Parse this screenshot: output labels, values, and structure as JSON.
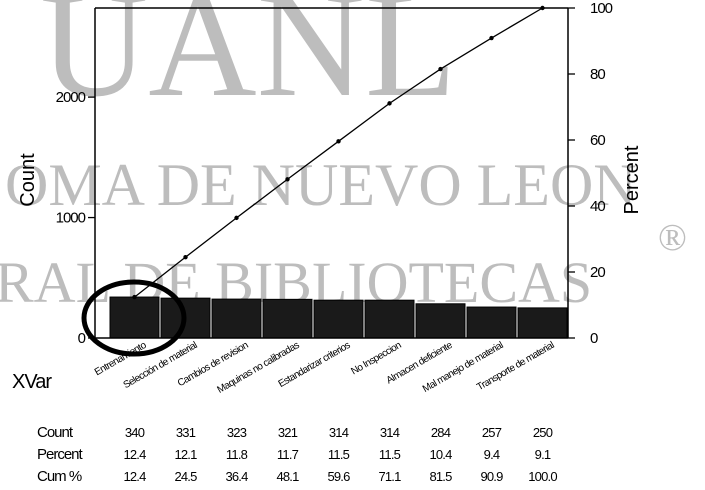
{
  "watermark": {
    "line1": "OMA DE NUEVO LEON",
    "line2": "RAL DE BIBLIOTECAS",
    "top": "UANL",
    "mark": "®"
  },
  "chart_data": {
    "type": "bar",
    "title": "",
    "xlabel": "XVar",
    "ylabel": "Count",
    "y2label": "Percent",
    "ylim": [
      0,
      2740
    ],
    "y2lim": [
      0,
      100
    ],
    "yticks": [
      0,
      1000,
      2000
    ],
    "ytick_labels": [
      "0",
      "1000",
      "2000"
    ],
    "y2ticks": [
      0,
      20,
      40,
      60,
      80,
      100
    ],
    "y2tick_labels": [
      "0",
      "20",
      "40",
      "60",
      "80",
      "100"
    ],
    "grid": false,
    "categories": [
      "Entrenamiento",
      "Selección de material",
      "Cambios de revision",
      "Maquinas no calibradas",
      "Estandarizar criterios",
      "No Inspeccion",
      "Almacen deficiente",
      "Mal manejo de material",
      "Transporte de material"
    ],
    "series": [
      {
        "name": "Count",
        "type": "bar",
        "values": [
          340,
          331,
          323,
          321,
          314,
          314,
          284,
          257,
          250
        ]
      },
      {
        "name": "Cum %",
        "type": "line",
        "values": [
          12.4,
          24.5,
          36.4,
          48.1,
          59.6,
          71.1,
          81.5,
          90.9,
          100.0
        ]
      }
    ],
    "table": {
      "rows": [
        {
          "label": "Count",
          "values": [
            "340",
            "331",
            "323",
            "321",
            "314",
            "314",
            "284",
            "257",
            "250"
          ]
        },
        {
          "label": "Percent",
          "values": [
            "12.4",
            "12.1",
            "11.8",
            "11.7",
            "11.5",
            "11.5",
            "10.4",
            "9.4",
            "9.1"
          ]
        },
        {
          "label": "Cum %",
          "values": [
            "12.4",
            "24.5",
            "36.4",
            "48.1",
            "59.6",
            "71.1",
            "81.5",
            "90.9",
            "100.0"
          ]
        }
      ]
    }
  }
}
